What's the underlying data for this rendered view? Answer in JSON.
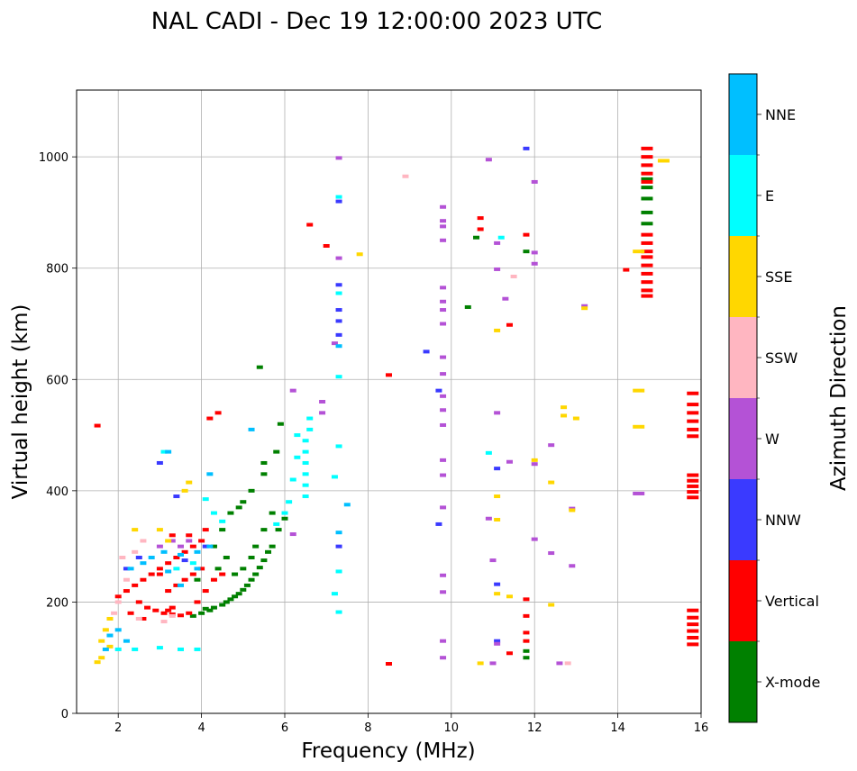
{
  "chart_data": {
    "type": "scatter",
    "title": "NAL CADI - Dec 19 12:00:00 2023 UTC",
    "xlabel": "Frequency (MHz)",
    "ylabel": "Virtual height (km)",
    "xlim": [
      1,
      16
    ],
    "ylim": [
      0,
      1120
    ],
    "xticks": [
      "2",
      "4",
      "6",
      "8",
      "10",
      "12",
      "14",
      "16"
    ],
    "yticks": [
      "0",
      "200",
      "400",
      "600",
      "800",
      "1000"
    ],
    "grid": true,
    "colorbar": {
      "label": "Azimuth Direction",
      "categories": [
        {
          "name": "X-mode",
          "color": "#008000"
        },
        {
          "name": "Vertical",
          "color": "#ff0000"
        },
        {
          "name": "NNW",
          "color": "#3a3aff"
        },
        {
          "name": "W",
          "color": "#b452d6"
        },
        {
          "name": "SSW",
          "color": "#ffb6c1"
        },
        {
          "name": "SSE",
          "color": "#ffd700"
        },
        {
          "name": "E",
          "color": "#00ffff"
        },
        {
          "name": "NNE",
          "color": "#00bfff"
        }
      ]
    },
    "series": [
      {
        "name": "X-mode",
        "points": [
          [
            4.1,
            188
          ],
          [
            4.3,
            190
          ],
          [
            4.5,
            195
          ],
          [
            4.7,
            205
          ],
          [
            4.9,
            215
          ],
          [
            5.1,
            230
          ],
          [
            5.3,
            250
          ],
          [
            5.5,
            275
          ],
          [
            5.7,
            300
          ],
          [
            5.85,
            330
          ],
          [
            6.0,
            350
          ],
          [
            3.8,
            175
          ],
          [
            4.0,
            180
          ],
          [
            4.2,
            185
          ],
          [
            4.6,
            200
          ],
          [
            4.8,
            210
          ],
          [
            5.0,
            222
          ],
          [
            5.2,
            240
          ],
          [
            5.4,
            262
          ],
          [
            5.6,
            290
          ],
          [
            5.3,
            300
          ],
          [
            5.5,
            330
          ],
          [
            5.7,
            360
          ],
          [
            4.9,
            370
          ],
          [
            5.2,
            400
          ],
          [
            5.5,
            430
          ],
          [
            5.8,
            470
          ],
          [
            5.9,
            520
          ],
          [
            5.5,
            450
          ],
          [
            4.5,
            330
          ],
          [
            4.7,
            360
          ],
          [
            5.0,
            380
          ],
          [
            4.3,
            300
          ],
          [
            4.6,
            280
          ],
          [
            3.9,
            240
          ],
          [
            4.4,
            260
          ],
          [
            4.8,
            250
          ],
          [
            5.0,
            260
          ],
          [
            5.2,
            280
          ],
          [
            11.8,
            112
          ],
          [
            11.8,
            100
          ],
          [
            14.7,
            945
          ],
          [
            14.7,
            925
          ],
          [
            14.7,
            900
          ],
          [
            14.7,
            880
          ],
          [
            14.7,
            960
          ],
          [
            11.8,
            830
          ],
          [
            10.6,
            855
          ],
          [
            10.4,
            730
          ],
          [
            5.4,
            622
          ]
        ]
      },
      {
        "name": "Vertical",
        "points": [
          [
            2.0,
            210
          ],
          [
            2.2,
            220
          ],
          [
            2.4,
            230
          ],
          [
            2.6,
            240
          ],
          [
            2.8,
            250
          ],
          [
            3.0,
            260
          ],
          [
            3.2,
            270
          ],
          [
            3.4,
            280
          ],
          [
            3.6,
            290
          ],
          [
            3.8,
            300
          ],
          [
            4.0,
            310
          ],
          [
            2.5,
            200
          ],
          [
            2.7,
            190
          ],
          [
            2.9,
            185
          ],
          [
            3.1,
            180
          ],
          [
            3.3,
            178
          ],
          [
            3.5,
            176
          ],
          [
            3.7,
            180
          ],
          [
            3.9,
            200
          ],
          [
            4.1,
            220
          ],
          [
            4.3,
            240
          ],
          [
            4.5,
            250
          ],
          [
            3.2,
            220
          ],
          [
            3.4,
            230
          ],
          [
            3.6,
            240
          ],
          [
            3.8,
            250
          ],
          [
            4.0,
            260
          ],
          [
            2.3,
            180
          ],
          [
            2.6,
            170
          ],
          [
            3.0,
            250
          ],
          [
            3.3,
            320
          ],
          [
            3.7,
            320
          ],
          [
            4.1,
            330
          ],
          [
            4.4,
            540
          ],
          [
            4.2,
            530
          ],
          [
            3.2,
            185
          ],
          [
            3.3,
            190
          ],
          [
            1.5,
            517
          ],
          [
            6.6,
            878
          ],
          [
            7.0,
            840
          ],
          [
            8.5,
            608
          ],
          [
            8.5,
            89
          ],
          [
            10.7,
            890
          ],
          [
            10.7,
            870
          ],
          [
            11.4,
            698
          ],
          [
            11.8,
            860
          ],
          [
            11.8,
            205
          ],
          [
            11.8,
            175
          ],
          [
            11.8,
            145
          ],
          [
            11.8,
            130
          ],
          [
            11.4,
            108
          ],
          [
            14.2,
            797
          ],
          [
            15.8,
            575
          ],
          [
            15.8,
            555
          ],
          [
            15.8,
            540
          ],
          [
            15.8,
            525
          ],
          [
            15.8,
            510
          ],
          [
            15.8,
            498
          ],
          [
            15.8,
            428
          ],
          [
            15.8,
            418
          ],
          [
            15.8,
            408
          ],
          [
            15.8,
            398
          ],
          [
            15.8,
            388
          ],
          [
            15.8,
            185
          ],
          [
            15.8,
            172
          ],
          [
            15.8,
            160
          ],
          [
            15.8,
            148
          ],
          [
            15.8,
            136
          ],
          [
            15.8,
            124
          ],
          [
            14.7,
            1015
          ],
          [
            14.7,
            1000
          ],
          [
            14.7,
            985
          ],
          [
            14.7,
            970
          ],
          [
            14.7,
            955
          ],
          [
            14.7,
            860
          ],
          [
            14.7,
            845
          ],
          [
            14.7,
            830
          ],
          [
            14.7,
            820
          ],
          [
            14.7,
            805
          ],
          [
            14.7,
            790
          ],
          [
            14.7,
            775
          ],
          [
            14.7,
            760
          ],
          [
            14.7,
            750
          ]
        ]
      },
      {
        "name": "NNW",
        "points": [
          [
            2.2,
            260
          ],
          [
            2.5,
            280
          ],
          [
            3.4,
            390
          ],
          [
            3.0,
            450
          ],
          [
            7.3,
            920
          ],
          [
            7.3,
            770
          ],
          [
            7.3,
            725
          ],
          [
            7.3,
            705
          ],
          [
            7.3,
            680
          ],
          [
            7.3,
            300
          ],
          [
            9.4,
            650
          ],
          [
            9.7,
            580
          ],
          [
            9.7,
            340
          ],
          [
            11.1,
            440
          ],
          [
            11.1,
            232
          ],
          [
            11.1,
            130
          ],
          [
            11.8,
            1015
          ],
          [
            4.1,
            300
          ],
          [
            3.6,
            275
          ]
        ]
      },
      {
        "name": "W",
        "points": [
          [
            3.0,
            300
          ],
          [
            3.3,
            310
          ],
          [
            3.5,
            300
          ],
          [
            3.7,
            310
          ],
          [
            6.2,
            580
          ],
          [
            6.2,
            322
          ],
          [
            6.9,
            540
          ],
          [
            6.9,
            560
          ],
          [
            7.3,
            998
          ],
          [
            7.3,
            818
          ],
          [
            7.2,
            665
          ],
          [
            9.8,
            910
          ],
          [
            9.8,
            885
          ],
          [
            9.8,
            875
          ],
          [
            9.8,
            850
          ],
          [
            9.8,
            765
          ],
          [
            9.8,
            740
          ],
          [
            9.8,
            725
          ],
          [
            9.8,
            700
          ],
          [
            9.8,
            640
          ],
          [
            9.8,
            610
          ],
          [
            9.8,
            570
          ],
          [
            9.8,
            545
          ],
          [
            9.8,
            518
          ],
          [
            9.8,
            455
          ],
          [
            9.8,
            428
          ],
          [
            9.8,
            370
          ],
          [
            9.8,
            248
          ],
          [
            9.8,
            218
          ],
          [
            9.8,
            130
          ],
          [
            9.8,
            100
          ],
          [
            10.9,
            995
          ],
          [
            11.1,
            845
          ],
          [
            11.1,
            798
          ],
          [
            11.3,
            745
          ],
          [
            11.1,
            540
          ],
          [
            11.4,
            452
          ],
          [
            10.9,
            350
          ],
          [
            11.0,
            275
          ],
          [
            11.1,
            125
          ],
          [
            11.0,
            90
          ],
          [
            12.0,
            955
          ],
          [
            12.0,
            828
          ],
          [
            12.0,
            808
          ],
          [
            12.0,
            448
          ],
          [
            12.0,
            313
          ],
          [
            12.4,
            482
          ],
          [
            12.4,
            288
          ],
          [
            12.9,
            368
          ],
          [
            12.9,
            265
          ],
          [
            13.2,
            732
          ],
          [
            12.6,
            90
          ],
          [
            14.5,
            395
          ]
        ]
      },
      {
        "name": "SSW",
        "points": [
          [
            2.1,
            280
          ],
          [
            2.4,
            290
          ],
          [
            2.6,
            310
          ],
          [
            1.9,
            180
          ],
          [
            2.0,
            200
          ],
          [
            2.2,
            240
          ],
          [
            2.5,
            170
          ],
          [
            3.1,
            165
          ],
          [
            8.9,
            965
          ],
          [
            11.5,
            785
          ],
          [
            12.8,
            90
          ],
          [
            3.3,
            175
          ]
        ]
      },
      {
        "name": "SSE",
        "points": [
          [
            1.6,
            130
          ],
          [
            1.7,
            150
          ],
          [
            1.8,
            170
          ],
          [
            1.6,
            100
          ],
          [
            1.5,
            92
          ],
          [
            2.4,
            330
          ],
          [
            3.0,
            330
          ],
          [
            3.6,
            400
          ],
          [
            3.7,
            415
          ],
          [
            7.8,
            825
          ],
          [
            11.1,
            688
          ],
          [
            11.1,
            390
          ],
          [
            11.1,
            348
          ],
          [
            11.1,
            215
          ],
          [
            11.4,
            210
          ],
          [
            10.7,
            90
          ],
          [
            12.0,
            455
          ],
          [
            12.4,
            415
          ],
          [
            12.4,
            195
          ],
          [
            12.7,
            550
          ],
          [
            12.7,
            535
          ],
          [
            13.0,
            530
          ],
          [
            12.9,
            365
          ],
          [
            13.2,
            728
          ],
          [
            14.5,
            830
          ],
          [
            14.5,
            580
          ],
          [
            14.5,
            515
          ],
          [
            15.1,
            993
          ],
          [
            3.2,
            310
          ],
          [
            1.8,
            120
          ]
        ]
      },
      {
        "name": "E",
        "points": [
          [
            6.5,
            490
          ],
          [
            6.5,
            470
          ],
          [
            6.5,
            450
          ],
          [
            6.5,
            430
          ],
          [
            6.5,
            410
          ],
          [
            6.5,
            390
          ],
          [
            6.6,
            510
          ],
          [
            6.6,
            530
          ],
          [
            6.3,
            500
          ],
          [
            6.3,
            460
          ],
          [
            6.2,
            420
          ],
          [
            6.1,
            380
          ],
          [
            6.0,
            360
          ],
          [
            5.8,
            340
          ],
          [
            2.0,
            115
          ],
          [
            2.4,
            115
          ],
          [
            3.0,
            118
          ],
          [
            3.5,
            115
          ],
          [
            3.9,
            115
          ],
          [
            3.4,
            260
          ],
          [
            3.8,
            270
          ],
          [
            4.3,
            360
          ],
          [
            4.5,
            345
          ],
          [
            7.3,
            928
          ],
          [
            7.3,
            755
          ],
          [
            7.3,
            605
          ],
          [
            7.3,
            480
          ],
          [
            7.2,
            425
          ],
          [
            7.3,
            255
          ],
          [
            7.2,
            215
          ],
          [
            7.3,
            182
          ],
          [
            11.2,
            855
          ],
          [
            10.9,
            468
          ],
          [
            4.1,
            385
          ],
          [
            3.1,
            470
          ]
        ]
      },
      {
        "name": "NNE",
        "points": [
          [
            2.3,
            260
          ],
          [
            2.6,
            270
          ],
          [
            2.8,
            280
          ],
          [
            3.1,
            290
          ],
          [
            3.5,
            285
          ],
          [
            3.9,
            290
          ],
          [
            4.2,
            300
          ],
          [
            1.8,
            140
          ],
          [
            2.0,
            150
          ],
          [
            1.7,
            115
          ],
          [
            2.2,
            130
          ],
          [
            3.2,
            255
          ],
          [
            3.5,
            230
          ],
          [
            3.9,
            260
          ],
          [
            7.3,
            325
          ],
          [
            7.5,
            375
          ],
          [
            7.3,
            660
          ],
          [
            3.2,
            470
          ],
          [
            4.2,
            430
          ],
          [
            5.2,
            510
          ]
        ]
      }
    ]
  }
}
